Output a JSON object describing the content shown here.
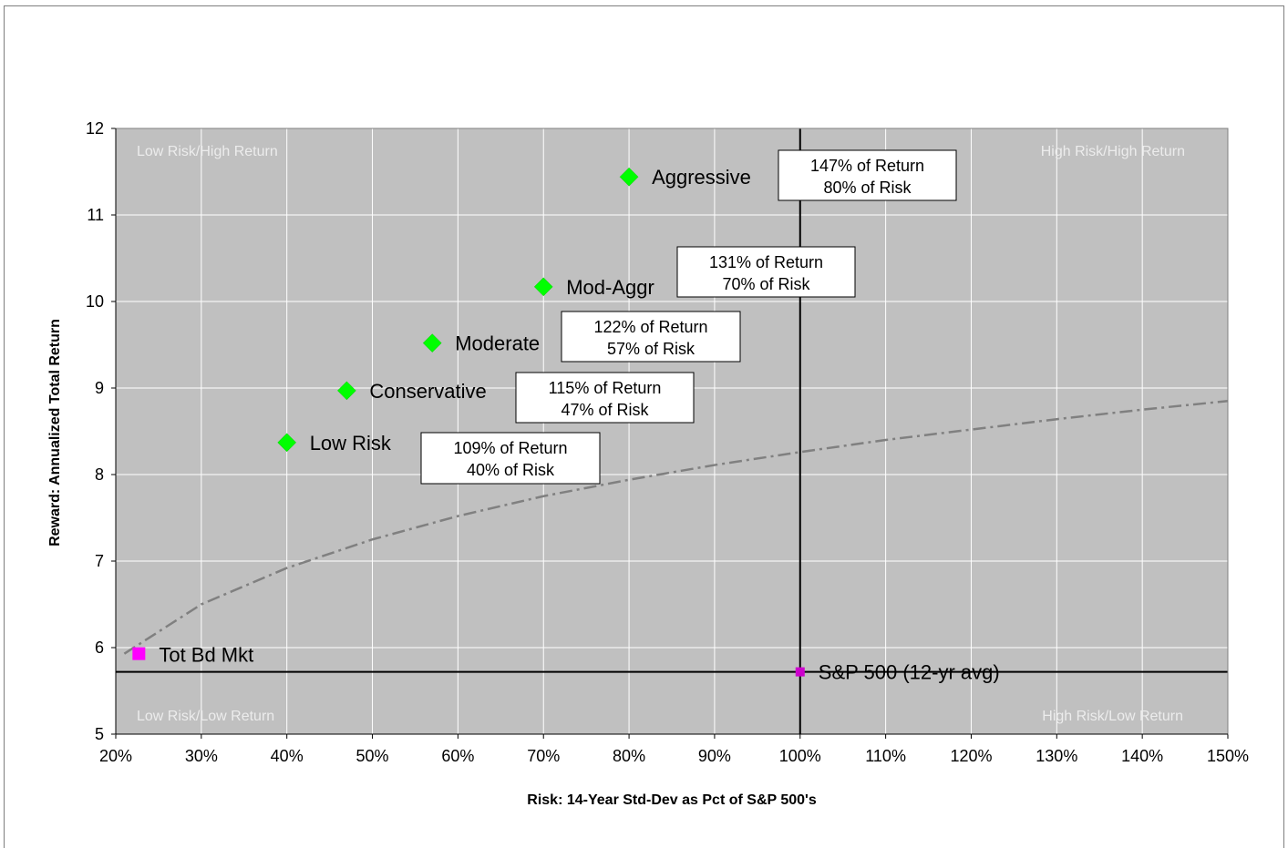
{
  "chart_data": {
    "type": "scatter",
    "xlabel": "Risk: 14-Year Std-Dev as Pct of S&P 500's",
    "ylabel": "Reward: Annualized Total Return",
    "xlim": [
      20,
      150
    ],
    "ylim": [
      5,
      12
    ],
    "x_ticks": [
      "20%",
      "30%",
      "40%",
      "50%",
      "60%",
      "70%",
      "80%",
      "90%",
      "100%",
      "110%",
      "120%",
      "130%",
      "140%",
      "150%"
    ],
    "y_ticks": [
      "5",
      "6",
      "7",
      "8",
      "9",
      "10",
      "11",
      "12"
    ],
    "grid": true,
    "colors": {
      "plot_bg": "#c0c0c0",
      "grid": "#ffffff",
      "portfolio": "#00ff00",
      "bond": "#ff00ff",
      "sp500": "#cc00cc",
      "curve": "#808080",
      "quadrant_text": "#ececec"
    },
    "quadrant_labels": {
      "top_left": "Low Risk/High Return",
      "top_right": "High Risk/High Return",
      "bottom_left": "Low Risk/Low Return",
      "bottom_right": "High Risk/Low Return"
    },
    "points": [
      {
        "name": "Low Risk",
        "x": 40,
        "y": 8.37,
        "marker": "diamond"
      },
      {
        "name": "Conservative",
        "x": 47,
        "y": 8.97,
        "marker": "diamond"
      },
      {
        "name": "Moderate",
        "x": 57,
        "y": 9.52,
        "marker": "diamond"
      },
      {
        "name": "Mod-Aggr",
        "x": 70,
        "y": 10.17,
        "marker": "diamond"
      },
      {
        "name": "Aggressive",
        "x": 80,
        "y": 11.44,
        "marker": "diamond"
      },
      {
        "name": "Tot Bd Mkt",
        "x": 22.7,
        "y": 5.93,
        "marker": "square"
      },
      {
        "name": "S&P 500 (12-yr avg)",
        "x": 100,
        "y": 5.72,
        "marker": "square-small"
      }
    ],
    "reference_lines": {
      "vertical_x": 100,
      "horizontal_y": 5.72
    },
    "annotations": [
      {
        "line1": "109% of Return",
        "line2": "40% of Risk"
      },
      {
        "line1": "115% of Return",
        "line2": "47% of Risk"
      },
      {
        "line1": "122% of Return",
        "line2": "57% of Risk"
      },
      {
        "line1": "131% of Return",
        "line2": "70% of Risk"
      },
      {
        "line1": "147% of Return",
        "line2": "80% of Risk"
      }
    ],
    "trend_curve": {
      "name": "",
      "style": "dash-dot",
      "x": [
        21,
        30,
        40,
        50,
        60,
        70,
        80,
        90,
        100,
        110,
        120,
        130,
        140,
        150
      ],
      "y": [
        5.93,
        6.5,
        6.92,
        7.25,
        7.52,
        7.75,
        7.94,
        8.11,
        8.26,
        8.4,
        8.52,
        8.64,
        8.75,
        8.85
      ]
    }
  }
}
